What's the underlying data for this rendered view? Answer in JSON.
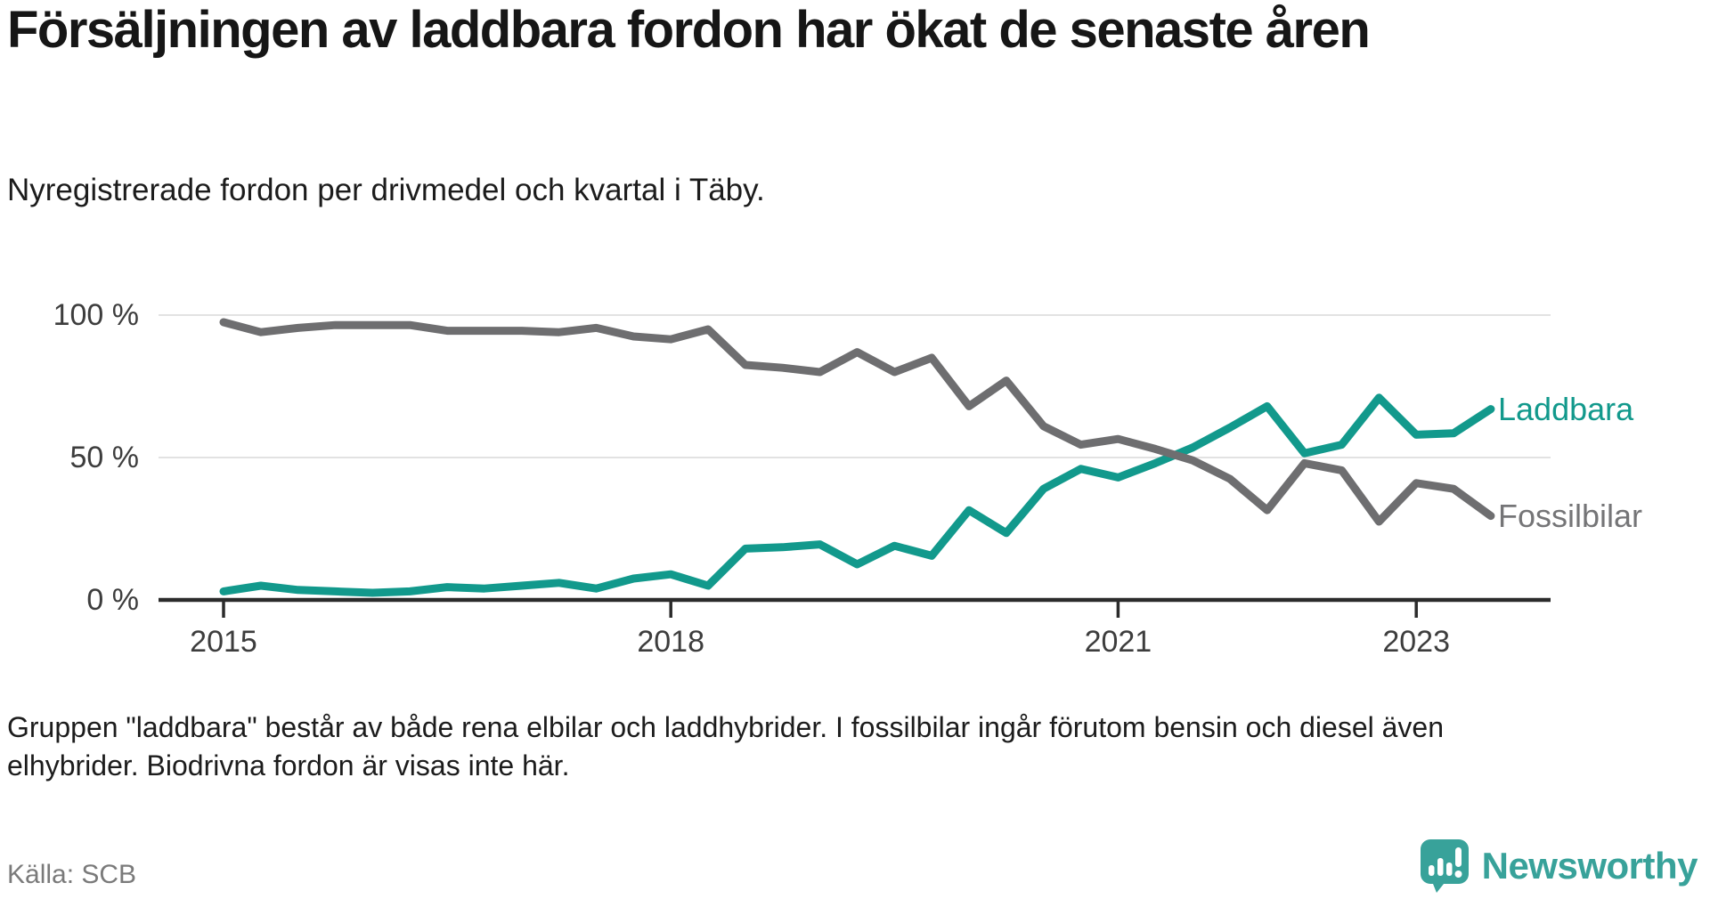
{
  "title": "Försäljningen av laddbara fordon har ökat de senaste åren",
  "subtitle": "Nyregistrerade fordon per drivmedel och kvartal i Täby.",
  "footnote": "Gruppen \"laddbara\" består av både rena elbilar och laddhybrider. I fossilbilar ingår förutom bensin och diesel även\nelhybrider. Biodrivna fordon är visas inte här.",
  "source": "Källa: SCB",
  "logo": {
    "name": "Newsworthy",
    "icon": "newsworthy-bubble-chart-icon",
    "color": "#38a29a"
  },
  "colors": {
    "laddbara": "#12998c",
    "fossilbilar": "#6e6e70",
    "grid": "#e2e2e2",
    "axis": "#2b2b2b",
    "label_laddbara": "#12998c",
    "label_fossilbilar": "#757577"
  },
  "chart_data": {
    "type": "line",
    "title": "Försäljningen av laddbara fordon har ökat de senaste åren",
    "subtitle": "Nyregistrerade fordon per drivmedel och kvartal i Täby.",
    "unit": "%",
    "grid": true,
    "legend_position": "line-end-labels",
    "ylim": [
      0,
      100
    ],
    "x": [
      "2015Q1",
      "2015Q2",
      "2015Q3",
      "2015Q4",
      "2016Q1",
      "2016Q2",
      "2016Q3",
      "2016Q4",
      "2017Q1",
      "2017Q2",
      "2017Q3",
      "2017Q4",
      "2018Q1",
      "2018Q2",
      "2018Q3",
      "2018Q4",
      "2019Q1",
      "2019Q2",
      "2019Q3",
      "2019Q4",
      "2020Q1",
      "2020Q2",
      "2020Q3",
      "2020Q4",
      "2021Q1",
      "2021Q2",
      "2021Q3",
      "2021Q4",
      "2022Q1",
      "2022Q2",
      "2022Q3",
      "2022Q4",
      "2023Q1",
      "2023Q2",
      "2023Q3"
    ],
    "series": [
      {
        "name": "Laddbara",
        "color": "#12998c",
        "values": [
          3,
          5,
          3.5,
          3,
          2.5,
          3,
          4.5,
          4,
          5,
          6,
          4,
          7.5,
          9,
          5,
          18,
          18.5,
          19.5,
          12.5,
          19,
          15.5,
          31.5,
          23.5,
          39,
          46,
          43,
          48,
          53.5,
          60.5,
          68,
          51.5,
          54.5,
          71,
          58,
          58.5,
          67
        ]
      },
      {
        "name": "Fossilbilar",
        "color": "#6e6e70",
        "values": [
          97.5,
          94,
          95.5,
          96.5,
          96.5,
          96.5,
          94.5,
          94.5,
          94.5,
          94,
          95.5,
          92.5,
          91.5,
          95,
          82.5,
          81.5,
          80,
          87,
          80,
          85,
          68,
          77,
          61,
          54.5,
          56.5,
          53,
          49,
          42.5,
          31.5,
          48,
          45.5,
          27.5,
          41,
          39,
          29.5
        ]
      }
    ],
    "yticks": [
      {
        "label": "100 %",
        "value": 100
      },
      {
        "label": "50 %",
        "value": 50
      },
      {
        "label": "0 %",
        "value": 0
      }
    ],
    "xticks": [
      {
        "label": "2015",
        "index": 0
      },
      {
        "label": "2018",
        "index": 12
      },
      {
        "label": "2021",
        "index": 24
      },
      {
        "label": "2023",
        "index": 32
      }
    ]
  }
}
